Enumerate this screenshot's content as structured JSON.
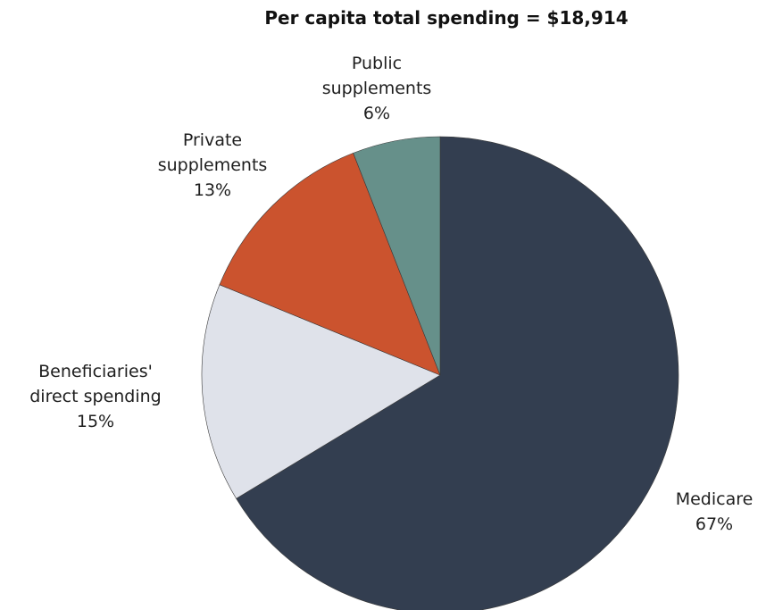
{
  "chart_data": {
    "type": "pie",
    "title": "Per capita total spending = $18,914",
    "slices": [
      {
        "label_lines": [
          "Medicare"
        ],
        "value": 67,
        "value_label": "67%",
        "color": "#333e50"
      },
      {
        "label_lines": [
          "Beneficiaries'",
          "direct spending"
        ],
        "value": 15,
        "value_label": "15%",
        "color": "#dfe2ea"
      },
      {
        "label_lines": [
          "Private",
          "supplements"
        ],
        "value": 13,
        "value_label": "13%",
        "color": "#cb532e"
      },
      {
        "label_lines": [
          "Public",
          "supplements"
        ],
        "value": 6,
        "value_label": "6%",
        "color": "#66908a"
      }
    ],
    "start_angle": "12 o'clock",
    "direction": "clockwise",
    "legend": "none"
  }
}
